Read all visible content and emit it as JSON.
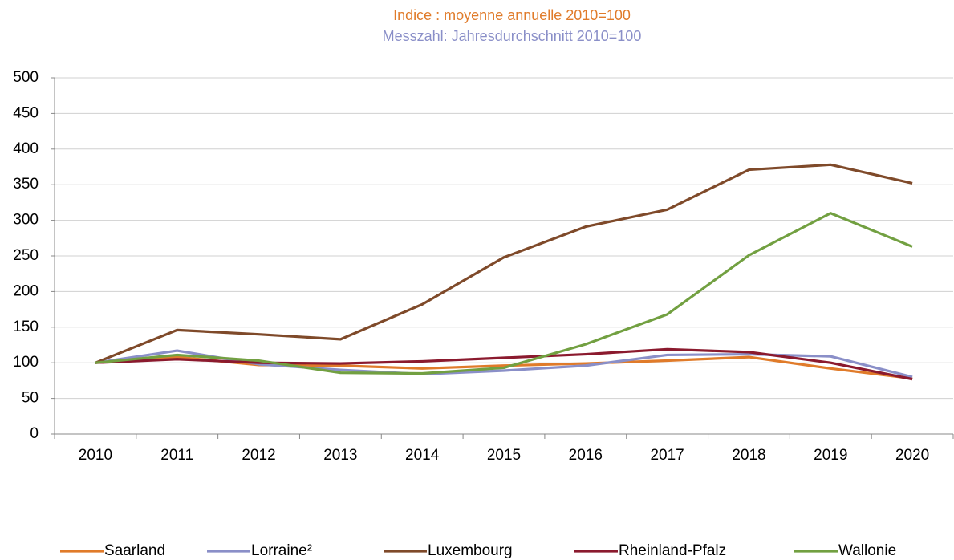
{
  "chart_data": {
    "type": "line",
    "title": "Indice : moyenne annuelle 2010=100",
    "subtitle": "Messzahl: Jahresdurchschnitt 2010=100",
    "categories": [
      "2010",
      "2011",
      "2012",
      "2013",
      "2014",
      "2015",
      "2016",
      "2017",
      "2018",
      "2019",
      "2020"
    ],
    "series": [
      {
        "name": "Saarland",
        "color": "#e07b2a",
        "values": [
          100,
          108,
          97,
          96,
          92,
          96,
          99,
          103,
          108,
          92,
          78
        ]
      },
      {
        "name": "Lorraine²",
        "color": "#8a8fc8",
        "values": [
          100,
          117,
          98,
          90,
          84,
          89,
          96,
          111,
          112,
          109,
          80
        ]
      },
      {
        "name": "Luxembourg",
        "color": "#7f4a2a",
        "values": [
          100,
          146,
          140,
          133,
          182,
          248,
          291,
          315,
          371,
          378,
          352
        ]
      },
      {
        "name": "Rheinland-Pfalz",
        "color": "#8b1a2e",
        "values": [
          100,
          105,
          100,
          99,
          102,
          107,
          112,
          119,
          115,
          100,
          77
        ]
      },
      {
        "name": "Wallonie",
        "color": "#72a041",
        "values": [
          100,
          111,
          103,
          86,
          85,
          93,
          126,
          168,
          251,
          310,
          263
        ]
      }
    ],
    "ylim": [
      0,
      500
    ],
    "yticks": [
      0,
      50,
      100,
      150,
      200,
      250,
      300,
      350,
      400,
      450,
      500
    ],
    "grid": true,
    "legend": "bottom"
  }
}
